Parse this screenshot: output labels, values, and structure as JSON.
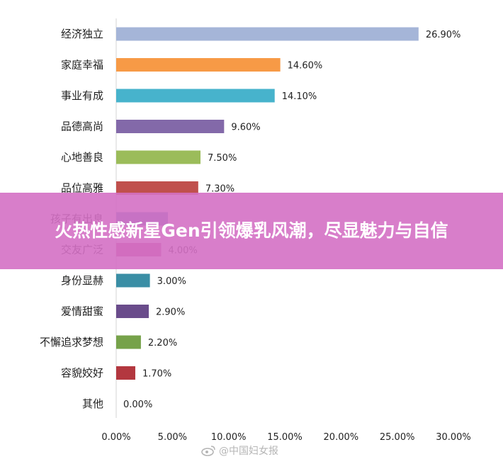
{
  "chart_data": {
    "type": "bar",
    "orientation": "horizontal",
    "categories": [
      "经济独立",
      "家庭幸福",
      "事业有成",
      "品德高尚",
      "心地善良",
      "品位高雅",
      "孩子有出息",
      "交友广泛",
      "身份显赫",
      "爱情甜蜜",
      "不懈追求梦想",
      "容貌姣好",
      "其他"
    ],
    "values": [
      26.9,
      14.6,
      14.1,
      9.6,
      7.5,
      7.3,
      4.6,
      4.0,
      3.0,
      2.9,
      2.2,
      1.7,
      0.0
    ],
    "value_labels": [
      "26.90%",
      "14.60%",
      "14.10%",
      "9.60%",
      "7.50%",
      "7.30%",
      "",
      "4.00%",
      "3.00%",
      "2.90%",
      "2.20%",
      "1.70%",
      "0.00%"
    ],
    "colors": [
      "#a5b5d8",
      "#f79a46",
      "#47b3cc",
      "#8369a9",
      "#9bbc5a",
      "#c0504d",
      "#4f81bd",
      "#c0508d",
      "#3a8ea5",
      "#6a4c8b",
      "#76a24a",
      "#b3373f",
      "#4f81bd"
    ],
    "xticks": [
      "0.00%",
      "5.00%",
      "10.00%",
      "15.00%",
      "20.00%",
      "25.00%",
      "30.00%"
    ],
    "xlim": [
      0,
      30
    ],
    "grid": false
  },
  "banner": {
    "text": "火热性感新星Gen引领爆乳风潮，尽显魅力与自信"
  },
  "watermark": {
    "text": "@中国妇女报",
    "icon": "weibo-icon"
  }
}
